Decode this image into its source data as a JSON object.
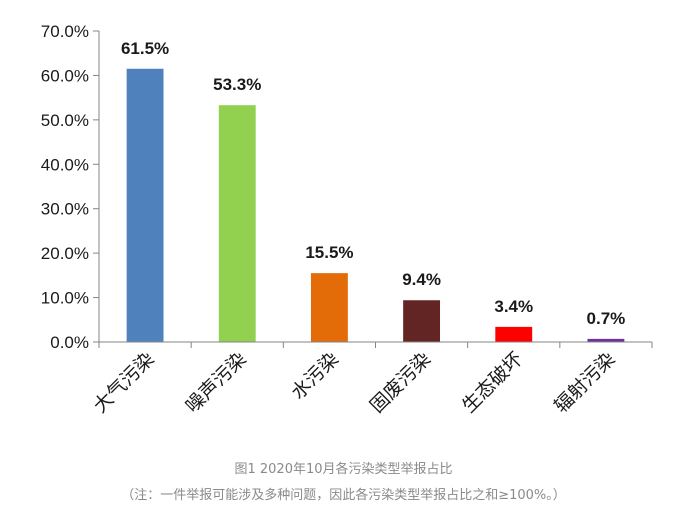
{
  "chart_data": {
    "type": "bar",
    "title": "图1  2020年10月各污染类型举报占比",
    "xlabel": "",
    "ylabel": "",
    "ylim": [
      0,
      70
    ],
    "yticks": [
      "0.0%",
      "10.0%",
      "20.0%",
      "30.0%",
      "40.0%",
      "50.0%",
      "60.0%",
      "70.0%"
    ],
    "categories": [
      "大气污染",
      "噪声污染",
      "水污染",
      "固废污染",
      "生态破坏",
      "辐射污染"
    ],
    "values": [
      61.5,
      53.3,
      15.5,
      9.4,
      3.4,
      0.7
    ],
    "value_labels": [
      "61.5%",
      "53.3%",
      "15.5%",
      "9.4%",
      "3.4%",
      "0.7%"
    ],
    "colors": [
      "#4f81bd",
      "#92d050",
      "#e36c09",
      "#632523",
      "#ff0000",
      "#7030a0"
    ],
    "grid": false,
    "legend": "none"
  },
  "caption": {
    "title": "图1  2020年10月各污染类型举报占比",
    "note": "（注：一件举报可能涉及多种问题，因此各污染类型举报占比之和≥100%。）"
  }
}
